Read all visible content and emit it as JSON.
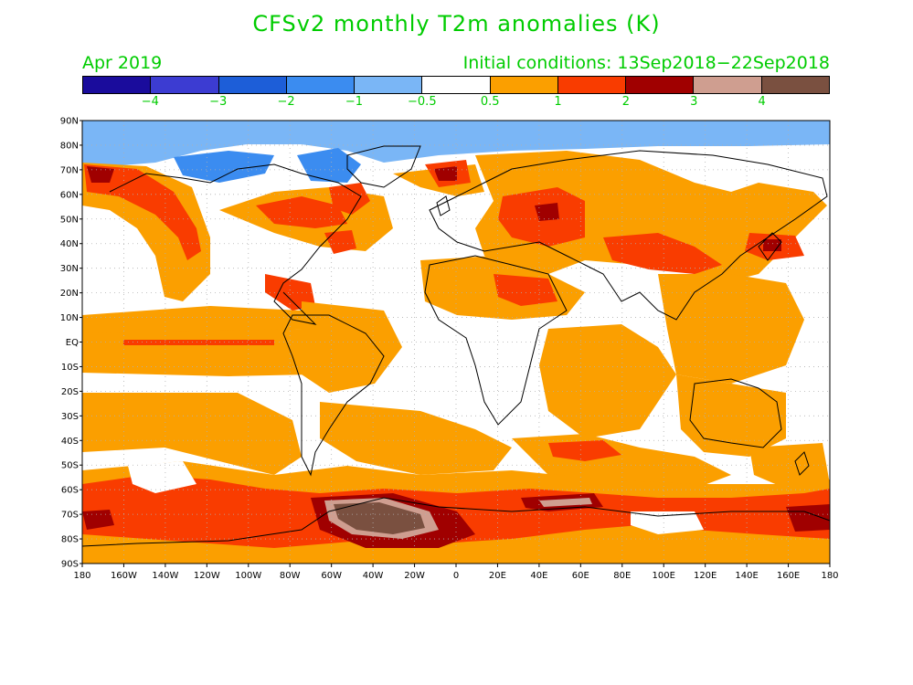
{
  "title": "CFSv2 monthly T2m anomalies (K)",
  "valid_month": "Apr 2019",
  "init_label": "Initial conditions: 13Sep2018−22Sep2018",
  "colorbar": {
    "colors": [
      "#1a0c9c",
      "#3c3cd2",
      "#1d5ed8",
      "#3b8cf0",
      "#7ab6f6",
      "#ffffff",
      "#fb9f00",
      "#f93c00",
      "#a00000",
      "#cf9e90",
      "#7a5040"
    ],
    "labels": [
      "−4",
      "−3",
      "−2",
      "−1",
      "−0.5",
      "0.5",
      "1",
      "2",
      "3",
      "4"
    ]
  },
  "lat_labels": [
    "90N",
    "80N",
    "70N",
    "60N",
    "50N",
    "40N",
    "30N",
    "20N",
    "10N",
    "EQ",
    "10S",
    "20S",
    "30S",
    "40S",
    "50S",
    "60S",
    "70S",
    "80S",
    "90S"
  ],
  "lon_labels": [
    "180",
    "160W",
    "140W",
    "120W",
    "100W",
    "80W",
    "60W",
    "40W",
    "20W",
    "0",
    "20E",
    "40E",
    "60E",
    "80E",
    "100E",
    "120E",
    "140E",
    "160E",
    "180"
  ],
  "map_colors": {
    "ocean": "#ffffff",
    "orange": "#fb9f00",
    "red": "#f93c00",
    "darkred": "#a00000",
    "pink": "#cf9e90",
    "brown": "#7a5040",
    "lightblue": "#7ab6f6",
    "blue": "#3b8cf0"
  }
}
